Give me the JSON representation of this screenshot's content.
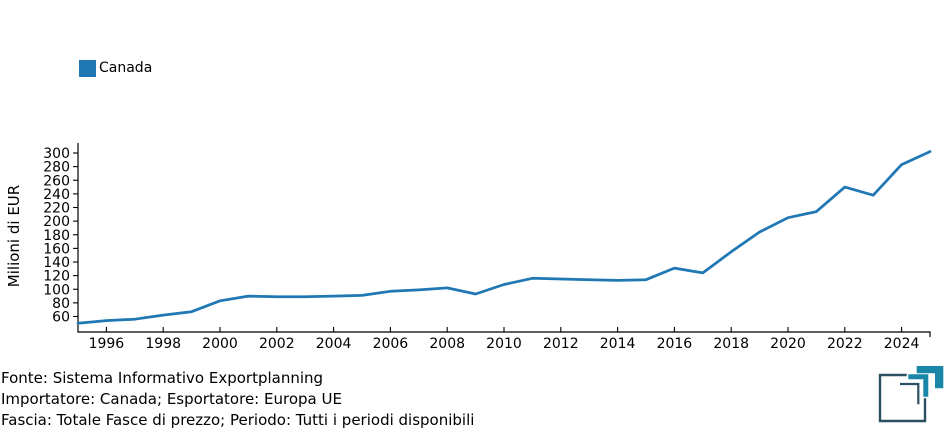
{
  "legend": {
    "label": "Canada",
    "color": "#1f77b4"
  },
  "chart_data": {
    "type": "line",
    "title": "",
    "ylabel": "Milioni di EUR",
    "xlabel": "",
    "grid": false,
    "legend_position": "top-left",
    "xlim": [
      1995,
      2025
    ],
    "ylim": [
      37,
      315
    ],
    "xticks": [
      1996,
      1998,
      2000,
      2002,
      2004,
      2006,
      2008,
      2010,
      2012,
      2014,
      2016,
      2018,
      2020,
      2022,
      2024
    ],
    "yticks": [
      60,
      80,
      100,
      120,
      140,
      160,
      180,
      200,
      220,
      240,
      260,
      280,
      300
    ],
    "axis_color": "#000000",
    "series": [
      {
        "name": "Canada",
        "color": "#1f77b4",
        "x": [
          1995,
          1996,
          1997,
          1998,
          1999,
          2000,
          2001,
          2002,
          2003,
          2004,
          2005,
          2006,
          2007,
          2008,
          2009,
          2010,
          2011,
          2012,
          2013,
          2014,
          2015,
          2016,
          2017,
          2018,
          2019,
          2020,
          2021,
          2022,
          2023,
          2024,
          2025
        ],
        "values": [
          50,
          54,
          56,
          62,
          67,
          83,
          90,
          89,
          89,
          90,
          91,
          97,
          99,
          102,
          93,
          107,
          116,
          115,
          114,
          113,
          114,
          131,
          124,
          155,
          184,
          205,
          214,
          250,
          238,
          283,
          302
        ]
      }
    ]
  },
  "footer": {
    "lines": [
      "Fonte: Sistema Informativo Exportplanning",
      "Importatore: Canada; Esportatore: Europa UE",
      "Fascia: Totale Fasce di prezzo; Periodo: Tutti i periodi disponibili"
    ]
  },
  "logo": {
    "teal": "#1a87a8",
    "dark": "#2d4f63"
  }
}
